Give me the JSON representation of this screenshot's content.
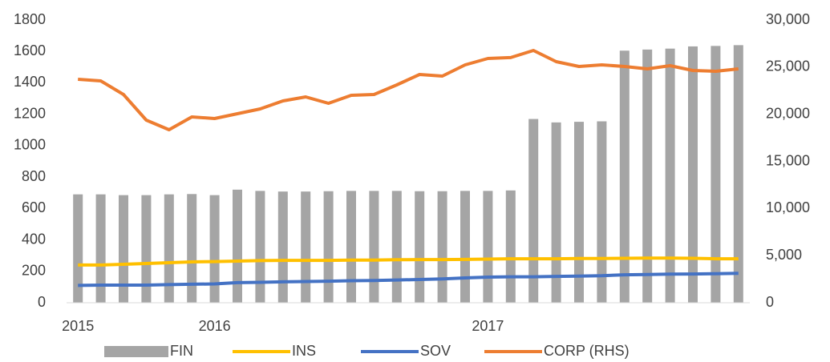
{
  "chart_data": {
    "type": "bar",
    "categories": [
      "2015",
      null,
      null,
      null,
      null,
      null,
      "2016",
      null,
      null,
      null,
      null,
      null,
      null,
      null,
      null,
      null,
      null,
      null,
      "2017",
      null,
      null,
      null,
      null,
      null,
      null,
      null,
      null,
      null,
      null,
      null
    ],
    "series": [
      {
        "name": "FIN",
        "type": "bar",
        "color": "#a5a5a5",
        "values": [
          690,
          690,
          685,
          685,
          690,
          692,
          685,
          720,
          712,
          708,
          708,
          710,
          712,
          712,
          712,
          710,
          710,
          712,
          712,
          715,
          1170,
          1148,
          1152,
          1155,
          1605,
          1612,
          1618,
          1632,
          1635,
          1640
        ]
      },
      {
        "name": "INS",
        "type": "line",
        "color": "#ffc000",
        "values": [
          240,
          240,
          245,
          250,
          255,
          260,
          262,
          265,
          268,
          270,
          270,
          270,
          272,
          272,
          274,
          275,
          275,
          276,
          278,
          280,
          280,
          280,
          282,
          282,
          283,
          284,
          284,
          283,
          280,
          280
        ]
      },
      {
        "name": "SOV",
        "type": "line",
        "color": "#4472c4",
        "values": [
          110,
          112,
          112,
          112,
          115,
          118,
          120,
          128,
          130,
          133,
          135,
          137,
          140,
          142,
          145,
          148,
          152,
          158,
          163,
          165,
          165,
          168,
          170,
          172,
          178,
          180,
          182,
          183,
          185,
          187
        ]
      },
      {
        "name": "CORP (RHS)",
        "type": "line",
        "axis": "y2",
        "color": "#ed7d31",
        "values": [
          23710,
          23540,
          22100,
          19380,
          18360,
          19720,
          19550,
          20060,
          20570,
          21420,
          21840,
          21160,
          22010,
          22100,
          23120,
          24220,
          24050,
          25240,
          25920,
          26010,
          26770,
          25580,
          25070,
          25240,
          25070,
          24820,
          25160,
          24650,
          24560,
          24820
        ]
      }
    ],
    "ylim": [
      0,
      1800
    ],
    "yticks": [
      0,
      200,
      400,
      600,
      800,
      1000,
      1200,
      1400,
      1600,
      1800
    ],
    "y2lim": [
      0,
      30000
    ],
    "y2ticks": [
      0,
      {
        "value": 5000,
        "label": "5,000"
      },
      {
        "value": 10000,
        "label": "10,000"
      },
      {
        "value": 15000,
        "label": "15,000"
      },
      {
        "value": 20000,
        "label": "20,000"
      },
      {
        "value": 25000,
        "label": "25,000"
      },
      {
        "value": 30000,
        "label": "30,000"
      }
    ],
    "grid": false,
    "legend": "bottom"
  }
}
